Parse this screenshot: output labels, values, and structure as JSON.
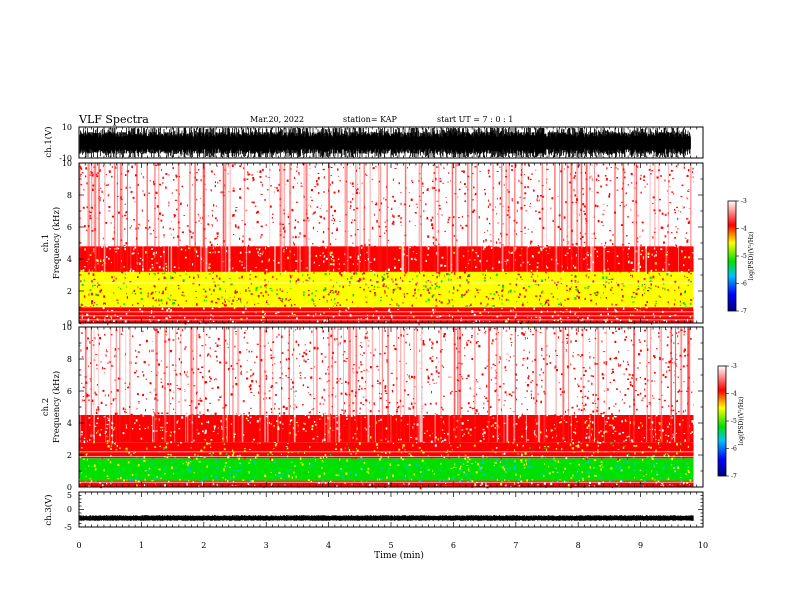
{
  "header": {
    "title": "VLF Spectra",
    "date": "Mar.20, 2022",
    "station": "station= KAP",
    "start": "start  UT =   7 : 0  : 1"
  },
  "chart_data": [
    {
      "type": "line",
      "name": "ch1-waveform",
      "ylabel": "ch.1(V)",
      "ylim": [
        -10,
        10
      ],
      "yticks": [
        "10",
        "-10"
      ],
      "xlim": [
        0,
        10
      ]
    },
    {
      "type": "heatmap",
      "name": "ch1-spectrogram",
      "ylabel_line1": "ch.1",
      "ylabel_line2": "Frequency  (kHz)",
      "ylim": [
        0,
        10
      ],
      "yticks": [
        "0",
        "2",
        "4",
        "6",
        "8",
        "10"
      ],
      "xlim": [
        0,
        9.85
      ],
      "bands": [
        {
          "from": 0.0,
          "to": 1.0,
          "level": -3.6
        },
        {
          "from": 1.0,
          "to": 3.2,
          "level": -4.5
        },
        {
          "from": 3.2,
          "to": 4.8,
          "level": -3.7
        },
        {
          "from": 4.8,
          "to": 10.0,
          "level": -3.2
        }
      ],
      "colorbar": {
        "range": [
          -7,
          -3
        ],
        "ticks": [
          "-3",
          "-4",
          "-5",
          "-6",
          "-7"
        ],
        "label": "log(PSD)(V²/Hz)"
      }
    },
    {
      "type": "heatmap",
      "name": "ch2-spectrogram",
      "ylabel_line1": "ch.2",
      "ylabel_line2": "Frequency  (kHz)",
      "ylim": [
        0,
        10
      ],
      "yticks": [
        "0",
        "2",
        "4",
        "6",
        "8",
        "10"
      ],
      "xlim": [
        0,
        9.85
      ],
      "bands": [
        {
          "from": 0.0,
          "to": 0.4,
          "level": -3.6
        },
        {
          "from": 0.4,
          "to": 1.8,
          "level": -5.2
        },
        {
          "from": 1.8,
          "to": 2.8,
          "level": -4.2
        },
        {
          "from": 2.8,
          "to": 4.5,
          "level": -3.7
        },
        {
          "from": 4.5,
          "to": 10.0,
          "level": -3.3
        }
      ],
      "colorbar": {
        "range": [
          -7,
          -3
        ],
        "ticks": [
          "-3",
          "-4",
          "-5",
          "-6",
          "-7"
        ],
        "label": "log(PSD)(V²/Hz)"
      }
    },
    {
      "type": "line",
      "name": "ch3-waveform",
      "ylabel": "ch.3(V)",
      "ylim": [
        -5,
        5
      ],
      "yticks": [
        "5",
        "0",
        "-5"
      ],
      "xlim": [
        0,
        10
      ]
    }
  ],
  "xaxis": {
    "label": "Time  (min)",
    "ticks": [
      "0",
      "1",
      "2",
      "3",
      "4",
      "5",
      "6",
      "7",
      "8",
      "9",
      "10"
    ],
    "range": [
      0,
      10
    ]
  },
  "colors": {
    "low": "#000080",
    "mid_low": "#00c0ff",
    "mid": "#00e000",
    "mid_high": "#ffff00",
    "high": "#ff0000",
    "top": "#ffffff"
  }
}
